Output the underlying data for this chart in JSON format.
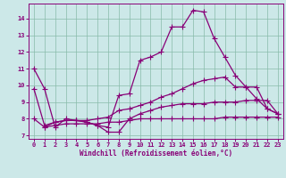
{
  "xlabel": "Windchill (Refroidissement éolien,°C)",
  "bg_color": "#cce8e8",
  "line_color": "#880077",
  "grid_color": "#88bbaa",
  "xlim_min": -0.5,
  "xlim_max": 23.5,
  "ylim_min": 6.8,
  "ylim_max": 14.9,
  "xticks": [
    0,
    1,
    2,
    3,
    4,
    5,
    6,
    7,
    8,
    9,
    10,
    11,
    12,
    13,
    14,
    15,
    16,
    17,
    18,
    19,
    20,
    21,
    22,
    23
  ],
  "yticks": [
    7,
    8,
    9,
    10,
    11,
    12,
    13,
    14
  ],
  "curve1_x": [
    0,
    1,
    2,
    3,
    4,
    5,
    6,
    7,
    8,
    9,
    10,
    11,
    12,
    13,
    14,
    15,
    16,
    17,
    18,
    19,
    20,
    21,
    22,
    23
  ],
  "curve1_y": [
    11.0,
    9.8,
    7.5,
    8.0,
    7.9,
    7.8,
    7.6,
    7.5,
    9.4,
    9.5,
    11.5,
    11.7,
    12.0,
    13.5,
    13.5,
    14.5,
    14.4,
    12.8,
    11.7,
    10.6,
    9.9,
    9.9,
    8.6,
    8.3
  ],
  "curve2_x": [
    0,
    1,
    2,
    3,
    4,
    5,
    6,
    7,
    8,
    9,
    10,
    11,
    12,
    13,
    14,
    15,
    16,
    17,
    18,
    19,
    20,
    21,
    22,
    23
  ],
  "curve2_y": [
    9.8,
    7.6,
    7.8,
    7.9,
    7.9,
    7.9,
    8.0,
    8.1,
    8.5,
    8.6,
    8.8,
    9.0,
    9.3,
    9.5,
    9.8,
    10.1,
    10.3,
    10.4,
    10.5,
    9.9,
    9.9,
    9.2,
    8.6,
    8.3
  ],
  "curve3_x": [
    0,
    1,
    2,
    3,
    4,
    5,
    6,
    7,
    8,
    9,
    10,
    11,
    12,
    13,
    14,
    15,
    16,
    17,
    18,
    19,
    20,
    21,
    22,
    23
  ],
  "curve3_y": [
    8.0,
    7.5,
    7.6,
    7.7,
    7.7,
    7.7,
    7.7,
    7.8,
    7.8,
    7.9,
    8.0,
    8.0,
    8.0,
    8.0,
    8.0,
    8.0,
    8.0,
    8.0,
    8.1,
    8.1,
    8.1,
    8.1,
    8.1,
    8.1
  ],
  "curve4_x": [
    1,
    2,
    3,
    4,
    5,
    6,
    7,
    8,
    9,
    10,
    11,
    12,
    13,
    14,
    15,
    16,
    17,
    18,
    19,
    20,
    21,
    22,
    23
  ],
  "curve4_y": [
    7.5,
    7.8,
    7.9,
    7.9,
    7.8,
    7.6,
    7.2,
    7.2,
    8.0,
    8.3,
    8.5,
    8.7,
    8.8,
    8.9,
    8.9,
    8.9,
    9.0,
    9.0,
    9.0,
    9.1,
    9.1,
    9.1,
    8.3
  ]
}
